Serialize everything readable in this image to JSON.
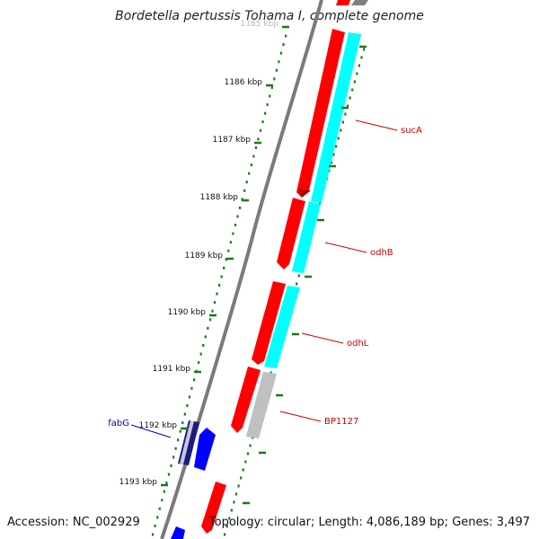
{
  "title": "Bordetella pertussis Tohama I, complete genome",
  "footer": {
    "accession": "Accession: NC_002929",
    "topology": "Topology: circular;",
    "length": "Length: 4,086,189 bp;",
    "genes": "Genes: 3,497"
  },
  "ticks": [
    "1185 kbp",
    "1186 kbp",
    "1187 kbp",
    "1188 kbp",
    "1189 kbp",
    "1190 kbp",
    "1191 kbp",
    "1192 kbp",
    "1193 kbp"
  ],
  "gene_labels": [
    {
      "name": "sucA",
      "color": "#cc0000"
    },
    {
      "name": "odhB",
      "color": "#cc0000"
    },
    {
      "name": "odhL",
      "color": "#cc0000"
    },
    {
      "name": "BP1127",
      "color": "#cc0000"
    },
    {
      "name": "fabG",
      "color": "#0000bb"
    }
  ],
  "colors": {
    "forward_cds": "#ff0000",
    "cog_cyan": "#00ffff",
    "cog_gray": "#c0c0c0",
    "reverse_cds": "#0000ff",
    "reverse_dark": "#1a1a80",
    "backbone": "#808080",
    "tick_green": "#1a7a1a"
  }
}
